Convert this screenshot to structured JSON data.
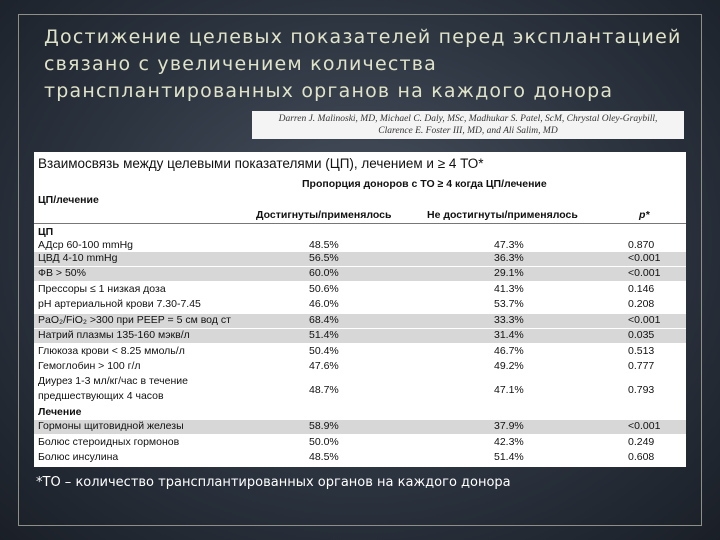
{
  "slide": {
    "title": "Достижение целевых показателей перед эксплантацией связано с увеличением количества трансплантированных органов на каждого донора",
    "authors_line1": "Darren J. Malinoski, MD, Michael C. Daly, MSc, Madhukar S. Patel, ScM, Chrystal Oley-Graybill,",
    "authors_line2": "Clarence E. Foster III, MD, and Ali Salim, MD",
    "footnote": "*ТО – количество трансплантированных органов на каждого донора"
  },
  "table": {
    "title": "Взаимосвязь между целевыми показателями (ЦП), лечением и ≥ 4 ТО*",
    "subtitle": "Пропорция доноров с ТО ≥ 4 когда ЦП/лечение",
    "row_header": "ЦП/лечение",
    "col1": "Достигнуты/применялось",
    "col2": "Не достигнуты/применялось",
    "col3": "p*",
    "section1": "ЦП",
    "section2": "Лечение",
    "rows": [
      {
        "label": "АДср 60-100 mmHg",
        "a": "48.5%",
        "b": "47.3%",
        "p": "0.870"
      },
      {
        "label": "ЦВД 4-10 mmHg",
        "a": "56.5%",
        "b": "36.3%",
        "p": "<0.001"
      },
      {
        "label": "ФВ > 50%",
        "a": "60.0%",
        "b": "29.1%",
        "p": "<0.001"
      },
      {
        "label": "Прессоры ≤ 1 низкая доза",
        "a": "50.6%",
        "b": "41.3%",
        "p": "0.146"
      },
      {
        "label": "pH артериальной крови 7.30-7.45",
        "a": "46.0%",
        "b": "53.7%",
        "p": "0.208"
      },
      {
        "label": "PaO₂/FiO₂ >300 при PEEP = 5 см вод ст",
        "a": "68.4%",
        "b": "33.3%",
        "p": "<0.001"
      },
      {
        "label": "Натрий плазмы 135-160 мэкв/л",
        "a": "51.4%",
        "b": "31.4%",
        "p": "0.035"
      },
      {
        "label": "Глюкоза крови < 8.25 ммоль/л",
        "a": "50.4%",
        "b": "46.7%",
        "p": "0.513"
      },
      {
        "label": "Гемоглобин > 100 г/л",
        "a": "47.6%",
        "b": "49.2%",
        "p": "0.777"
      },
      {
        "label": "Диурез 1-3 мл/кг/час в течение",
        "label2": "предшествующих 4 часов",
        "a": "48.7%",
        "b": "47.1%",
        "p": "0.793"
      },
      {
        "label": "Гормоны щитовидной железы",
        "a": "58.9%",
        "b": "37.9%",
        "p": "<0.001"
      },
      {
        "label": "Болюс стероидных гормонов",
        "a": "50.0%",
        "b": "42.3%",
        "p": "0.249"
      },
      {
        "label": "Болюс инсулина",
        "a": "48.5%",
        "b": "51.4%",
        "p": "0.608"
      }
    ]
  }
}
